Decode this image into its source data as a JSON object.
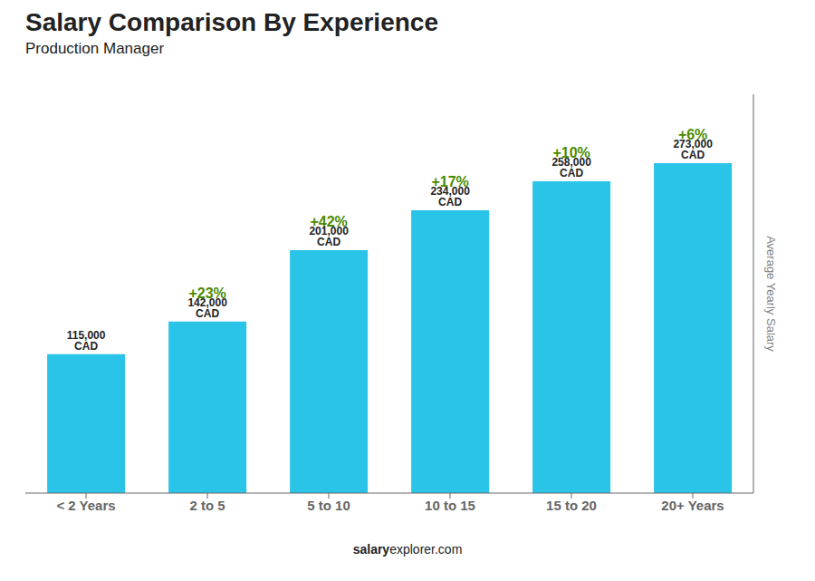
{
  "chart_data": {
    "type": "bar",
    "title": "Salary Comparison By Experience",
    "subtitle": "Production Manager",
    "categories": [
      "< 2 Years",
      "2 to 5",
      "5 to 10",
      "10 to 15",
      "15 to 20",
      "20+ Years"
    ],
    "values": [
      115000,
      142000,
      201000,
      234000,
      258000,
      273000
    ],
    "value_labels": [
      "115,000 CAD",
      "142,000 CAD",
      "201,000 CAD",
      "234,000 CAD",
      "258,000 CAD",
      "273,000 CAD"
    ],
    "data_labels": true,
    "annotations": [
      "+23%",
      "+42%",
      "+17%",
      "+10%",
      "+6%"
    ],
    "ylabel": "Average Yearly Salary",
    "footer": [
      "salary",
      "explorer.com"
    ],
    "color": "#29c4e8",
    "ylim": [
      0,
      330000
    ],
    "tick_labels": "x",
    "grid": false
  }
}
